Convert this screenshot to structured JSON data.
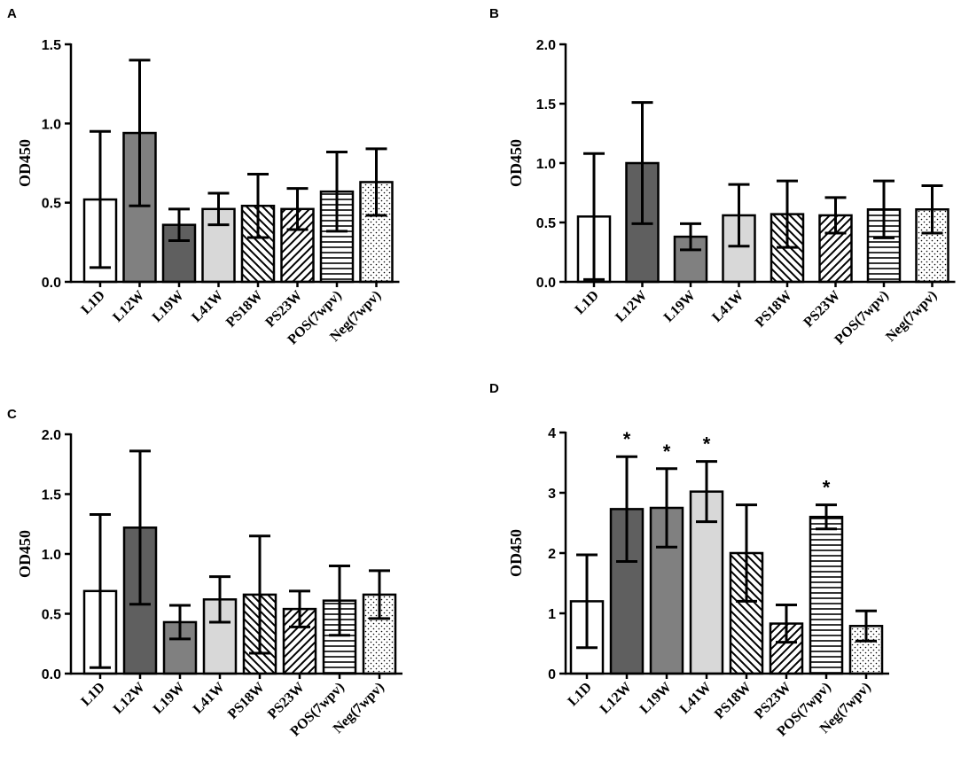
{
  "figure": {
    "title": ""
  },
  "chart_data": [
    {
      "panel": "A",
      "type": "bar",
      "title": "",
      "xlabel": "",
      "ylabel": "OD450",
      "ylim": [
        0,
        1.5
      ],
      "yticks": [
        "0.0",
        "0.5",
        "1.0",
        "1.5"
      ],
      "categories": [
        "L1D",
        "L12W",
        "L19W",
        "L41W",
        "PS18W",
        "PS23W",
        "POS(7wpv)",
        "Neg(7wpv)"
      ],
      "values": [
        0.52,
        0.94,
        0.36,
        0.46,
        0.48,
        0.46,
        0.57,
        0.63
      ],
      "errors": [
        0.43,
        0.46,
        0.1,
        0.1,
        0.2,
        0.13,
        0.25,
        0.21
      ],
      "fills": [
        "white",
        "mid",
        "dark",
        "light",
        "diag-back",
        "diag-fwd",
        "horiz",
        "dots"
      ],
      "annotations": [
        "",
        "",
        "",
        "",
        "",
        "",
        "",
        ""
      ],
      "grid": false
    },
    {
      "panel": "B",
      "type": "bar",
      "title": "",
      "xlabel": "",
      "ylabel": "OD450",
      "ylim": [
        0,
        2.0
      ],
      "yticks": [
        "0.0",
        "0.5",
        "1.0",
        "1.5",
        "2.0"
      ],
      "categories": [
        "L1D",
        "L12W",
        "L19W",
        "L41W",
        "PS18W",
        "PS23W",
        "POS(7wpv)",
        "Neg(7wpv)"
      ],
      "values": [
        0.55,
        1.0,
        0.38,
        0.56,
        0.57,
        0.56,
        0.61,
        0.61
      ],
      "errors": [
        0.53,
        0.51,
        0.11,
        0.26,
        0.28,
        0.15,
        0.24,
        0.2
      ],
      "fills": [
        "white",
        "dark",
        "mid",
        "light",
        "diag-back",
        "diag-fwd",
        "horiz",
        "dots"
      ],
      "annotations": [
        "",
        "",
        "",
        "",
        "",
        "",
        "",
        ""
      ],
      "grid": false
    },
    {
      "panel": "C",
      "type": "bar",
      "title": "",
      "xlabel": "",
      "ylabel": "OD450",
      "ylim": [
        0,
        2.0
      ],
      "yticks": [
        "0.0",
        "0.5",
        "1.0",
        "1.5",
        "2.0"
      ],
      "categories": [
        "L1D",
        "L12W",
        "L19W",
        "L41W",
        "PS18W",
        "PS23W",
        "POS(7wpv)",
        "Neg(7wpv)"
      ],
      "values": [
        0.69,
        1.22,
        0.43,
        0.62,
        0.66,
        0.54,
        0.61,
        0.66
      ],
      "errors": [
        0.64,
        0.64,
        0.14,
        0.19,
        0.49,
        0.15,
        0.29,
        0.2
      ],
      "fills": [
        "white",
        "dark",
        "mid",
        "light",
        "diag-back",
        "diag-fwd",
        "horiz",
        "dots"
      ],
      "annotations": [
        "",
        "",
        "",
        "",
        "",
        "",
        "",
        ""
      ],
      "grid": false
    },
    {
      "panel": "D",
      "type": "bar",
      "title": "",
      "xlabel": "",
      "ylabel": "OD450",
      "ylim": [
        0,
        4
      ],
      "yticks": [
        "0",
        "1",
        "2",
        "3",
        "4"
      ],
      "categories": [
        "L1D",
        "L12W",
        "L19W",
        "L41W",
        "PS18W",
        "PS23W",
        "POS(7wpv)",
        "Neg(7wpv)"
      ],
      "values": [
        1.2,
        2.73,
        2.75,
        3.02,
        2.0,
        0.83,
        2.6,
        0.79
      ],
      "errors": [
        0.77,
        0.87,
        0.65,
        0.5,
        0.8,
        0.31,
        0.2,
        0.25
      ],
      "fills": [
        "white",
        "dark",
        "mid",
        "light",
        "diag-back",
        "diag-fwd",
        "horiz",
        "dots"
      ],
      "annotations": [
        "",
        "*",
        "*",
        "*",
        "",
        "",
        "*",
        ""
      ],
      "grid": false
    }
  ]
}
